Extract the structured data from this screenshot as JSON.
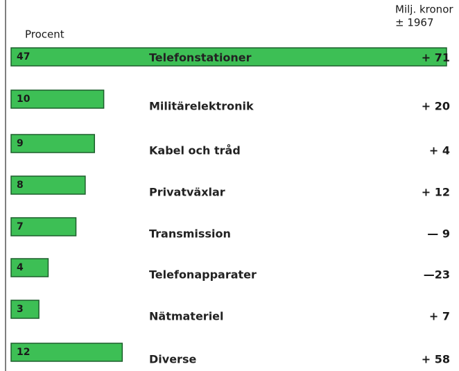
{
  "chart_data": {
    "type": "bar",
    "x_label": "Procent",
    "change_label": [
      "Milj. kronor",
      "± 1967"
    ],
    "categories": [
      "Telefonstationer",
      "Militärelektronik",
      "Kabel och tråd",
      "Privatväxlar",
      "Transmission",
      "Telefonapparater",
      "Nätmateriel",
      "Diverse"
    ],
    "series": [
      {
        "color": "#3dbf55",
        "values": [
          47,
          10,
          9,
          8,
          7,
          4,
          3,
          12
        ]
      },
      {
        "values": [
          71,
          20,
          4,
          12,
          -9,
          -23,
          7,
          58
        ],
        "value_labels": [
          "+ 71",
          "+ 20",
          "+ 4",
          "+ 12",
          "— 9",
          "—23",
          "+ 7",
          "+ 58"
        ]
      }
    ]
  }
}
